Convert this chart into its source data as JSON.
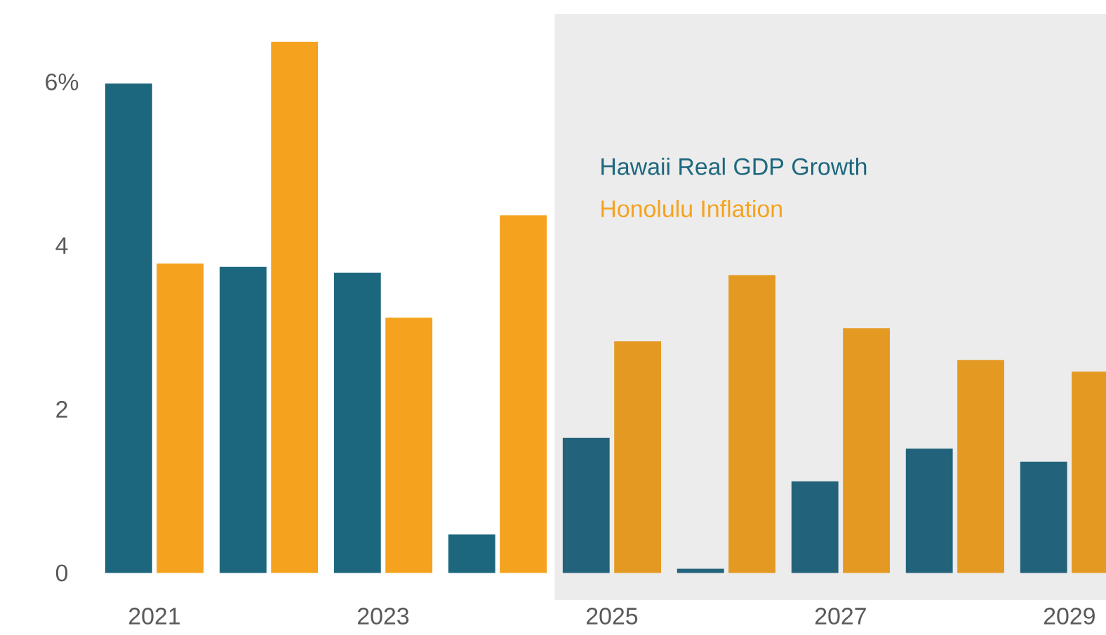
{
  "chart_data": {
    "type": "bar",
    "categories": [
      "2021",
      null,
      "2023",
      null,
      "2025",
      null,
      "2027",
      null,
      "2029"
    ],
    "series": [
      {
        "name": "Hawaii Real GDP Growth",
        "color": "#1d677e",
        "colors": [
          "#1d677e",
          "#1d677e",
          "#1d677e",
          "#1d677e",
          "#22627a",
          "#22627a",
          "#22627a",
          "#22627a",
          "#22627a"
        ],
        "values": [
          5.98,
          3.74,
          3.67,
          0.47,
          1.65,
          0.05,
          1.12,
          1.52,
          1.36
        ]
      },
      {
        "name": "Honolulu Inflation",
        "color": "#f5a21e",
        "colors": [
          "#f5a21e",
          "#f5a21e",
          "#f5a21e",
          "#f5a21e",
          "#e49a22",
          "#e49a22",
          "#e49a22",
          "#e49a22",
          "#e49a22"
        ],
        "values": [
          3.78,
          6.49,
          3.12,
          4.37,
          2.83,
          3.64,
          2.99,
          2.6,
          2.46
        ]
      }
    ],
    "ylim": [
      -0.33,
      6.83
    ],
    "yticks": [
      0,
      2,
      4,
      {
        "value": 6,
        "label": "6%"
      }
    ],
    "bands": [
      {
        "axis": "x",
        "from": "2025",
        "to": "2029",
        "color": "#ececec"
      }
    ],
    "grid": false,
    "legend": "top right"
  }
}
